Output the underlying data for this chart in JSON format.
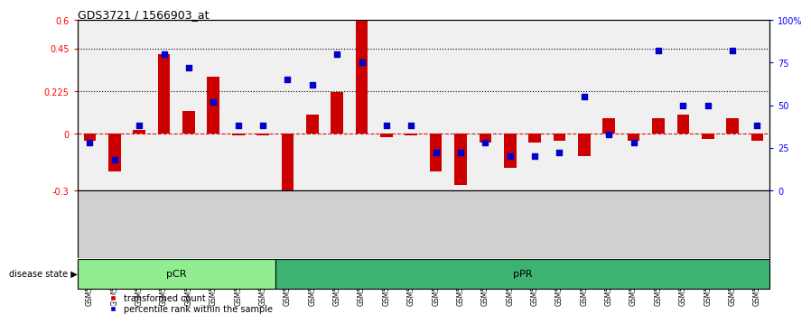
{
  "title": "GDS3721 / 1566903_at",
  "samples": [
    "GSM559062",
    "GSM559063",
    "GSM559064",
    "GSM559065",
    "GSM559066",
    "GSM559067",
    "GSM559068",
    "GSM559069",
    "GSM559042",
    "GSM559043",
    "GSM559044",
    "GSM559045",
    "GSM559046",
    "GSM559047",
    "GSM559048",
    "GSM559049",
    "GSM559050",
    "GSM559051",
    "GSM559052",
    "GSM559053",
    "GSM559054",
    "GSM559055",
    "GSM559056",
    "GSM559057",
    "GSM559058",
    "GSM559059",
    "GSM559060",
    "GSM559061"
  ],
  "red_values": [
    -0.04,
    -0.2,
    0.02,
    0.42,
    0.12,
    0.3,
    -0.01,
    -0.01,
    -0.3,
    0.1,
    0.22,
    0.6,
    -0.02,
    -0.01,
    -0.2,
    -0.27,
    -0.05,
    -0.18,
    -0.05,
    -0.04,
    -0.12,
    0.08,
    -0.04,
    0.08,
    0.1,
    -0.03,
    0.08,
    -0.04
  ],
  "blue_pct": [
    28,
    18,
    38,
    80,
    72,
    52,
    38,
    38,
    65,
    62,
    80,
    75,
    38,
    38,
    22,
    22,
    28,
    20,
    20,
    22,
    55,
    33,
    28,
    82,
    50,
    50,
    82,
    38
  ],
  "groups": [
    {
      "label": "pCR",
      "start": 0,
      "end": 8,
      "color": "#90EE90"
    },
    {
      "label": "pPR",
      "start": 8,
      "end": 28,
      "color": "#3CB371"
    }
  ],
  "ylim_left": [
    -0.3,
    0.6
  ],
  "ylim_right": [
    0,
    100
  ],
  "yticks_left": [
    -0.3,
    0.0,
    0.225,
    0.45,
    0.6
  ],
  "yticks_right": [
    0,
    25,
    50,
    75,
    100
  ],
  "hlines_dotted": [
    0.225,
    0.45
  ],
  "bar_color": "#CC0000",
  "dot_color": "#0000CC",
  "plot_bg": "#f0f0f0",
  "xtick_bg": "#d0d0d0",
  "legend_red": "transformed count",
  "legend_blue": "percentile rank within the sample",
  "pcr_count": 8
}
